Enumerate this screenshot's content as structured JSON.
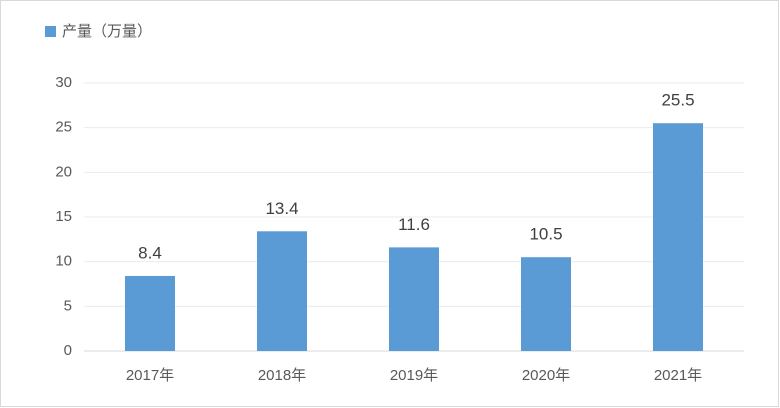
{
  "chart_data": {
    "type": "bar",
    "legend": "产量（万量）",
    "legend_position": "top-left",
    "categories": [
      "2017年",
      "2018年",
      "2019年",
      "2020年",
      "2021年"
    ],
    "values": [
      8.4,
      13.4,
      11.6,
      10.5,
      25.5
    ],
    "color": "#5b9bd5",
    "ylim": [
      0,
      30
    ],
    "yticks": [
      0,
      5,
      10,
      15,
      20,
      25,
      30
    ],
    "grid": true,
    "data_labels": true
  }
}
